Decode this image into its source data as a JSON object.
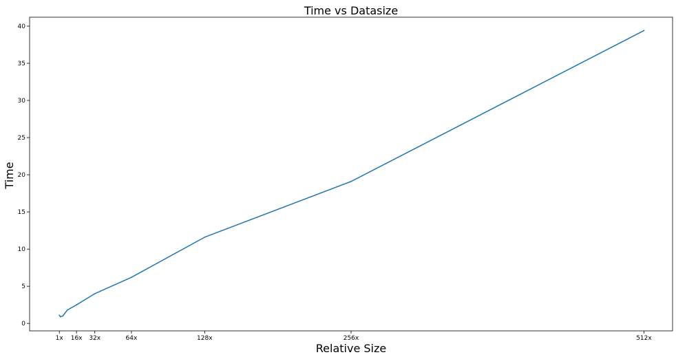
{
  "chart_data": {
    "type": "line",
    "title": "Time vs Datasize",
    "xlabel": "Relative Size",
    "ylabel": "Time",
    "x": [
      1,
      2,
      4,
      8,
      16,
      32,
      64,
      128,
      256,
      512
    ],
    "series": [
      {
        "color": "#1f77b4",
        "values": [
          1.1,
          0.9,
          1.0,
          1.8,
          2.5,
          4.0,
          6.2,
          11.6,
          19.1,
          39.4
        ]
      }
    ],
    "xlim": [
      -25,
      537
    ],
    "ylim": [
      -1.0,
      41.2
    ],
    "xticks": [
      {
        "value": 1,
        "label": "1x"
      },
      {
        "value": 16,
        "label": "16x"
      },
      {
        "value": 32,
        "label": "32x"
      },
      {
        "value": 64,
        "label": "64x"
      },
      {
        "value": 128,
        "label": "128x"
      },
      {
        "value": 256,
        "label": "256x"
      },
      {
        "value": 512,
        "label": "512x"
      }
    ],
    "yticks": [
      {
        "value": 0,
        "label": "0"
      },
      {
        "value": 5,
        "label": "5"
      },
      {
        "value": 10,
        "label": "10"
      },
      {
        "value": 15,
        "label": "15"
      },
      {
        "value": 20,
        "label": "20"
      },
      {
        "value": 25,
        "label": "25"
      },
      {
        "value": 30,
        "label": "30"
      },
      {
        "value": 35,
        "label": "35"
      },
      {
        "value": 40,
        "label": "40"
      }
    ],
    "grid": false,
    "legend": false
  }
}
